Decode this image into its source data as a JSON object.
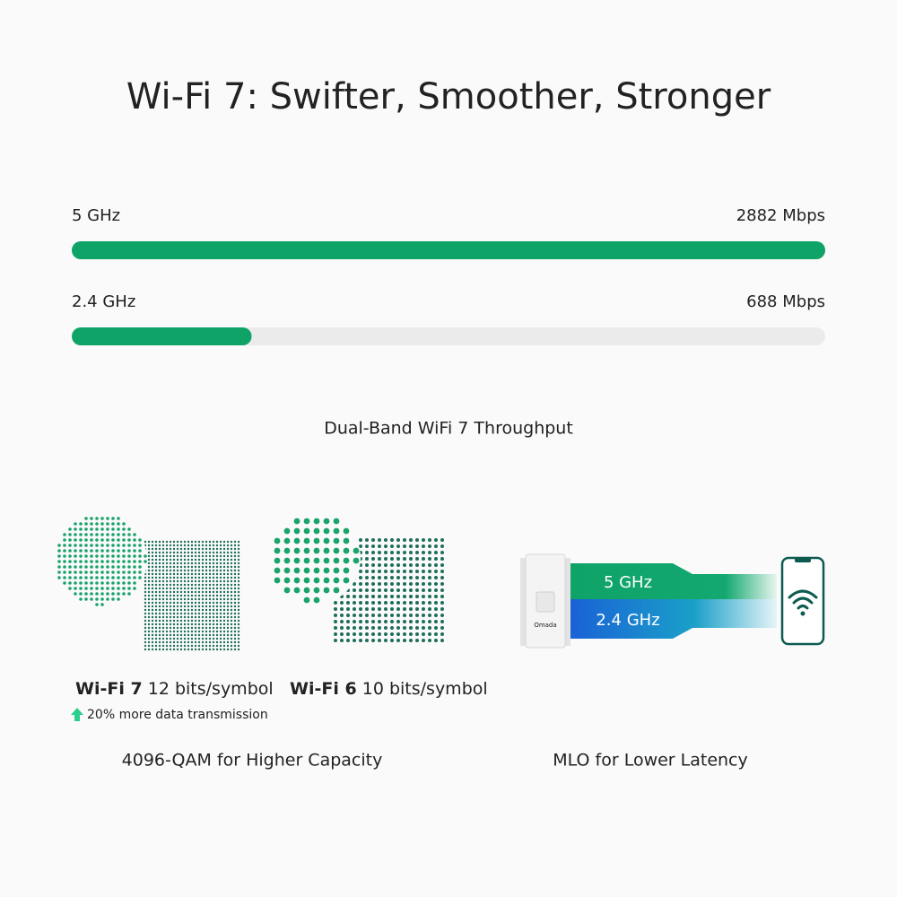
{
  "title": "Wi-Fi 7: Swifter, Smoother, Stronger",
  "chart_data": {
    "type": "bar",
    "orientation": "horizontal",
    "categories": [
      "5 GHz",
      "2.4 GHz"
    ],
    "values": [
      2882,
      688
    ],
    "value_labels": [
      "2882 Mbps",
      "688 Mbps"
    ],
    "xlim": [
      0,
      2882
    ],
    "color": "#0fa368",
    "track_color": "#ebebeb",
    "caption": "Dual-Band WiFi 7 Throughput"
  },
  "qam": {
    "items": [
      {
        "name": "Wi-Fi 7",
        "detail": "12 bits/symbol"
      },
      {
        "name": "Wi-Fi 6",
        "detail": "10 bits/symbol"
      }
    ],
    "note": "20% more data transmission",
    "caption": "4096-QAM for Higher Capacity"
  },
  "mlo": {
    "bands": [
      "5 GHz",
      "2.4 GHz"
    ],
    "device_label": "Omada",
    "caption": "MLO for Lower Latency"
  }
}
